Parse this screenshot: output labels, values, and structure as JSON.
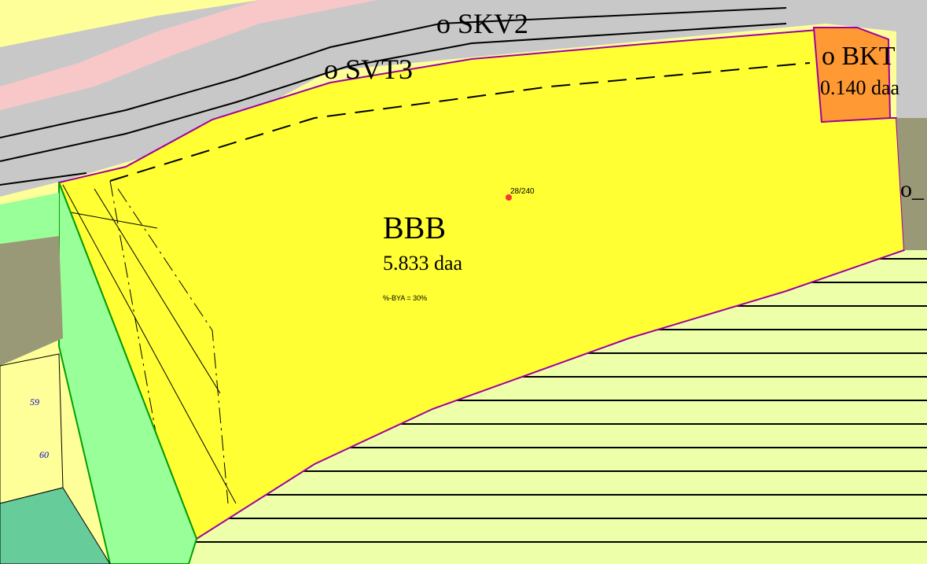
{
  "labels": {
    "road_top": "o SKV2",
    "road_side": "o SVT3",
    "corner_zone": "o BKT",
    "corner_area": "0.140 daa",
    "main_zone": "BBB",
    "main_area": "5.833 daa",
    "main_rule": "%-BYA = 30%",
    "parcel": "28/240",
    "right_edge": "o_",
    "left_lot_1": "59",
    "left_lot_2": "60"
  }
}
